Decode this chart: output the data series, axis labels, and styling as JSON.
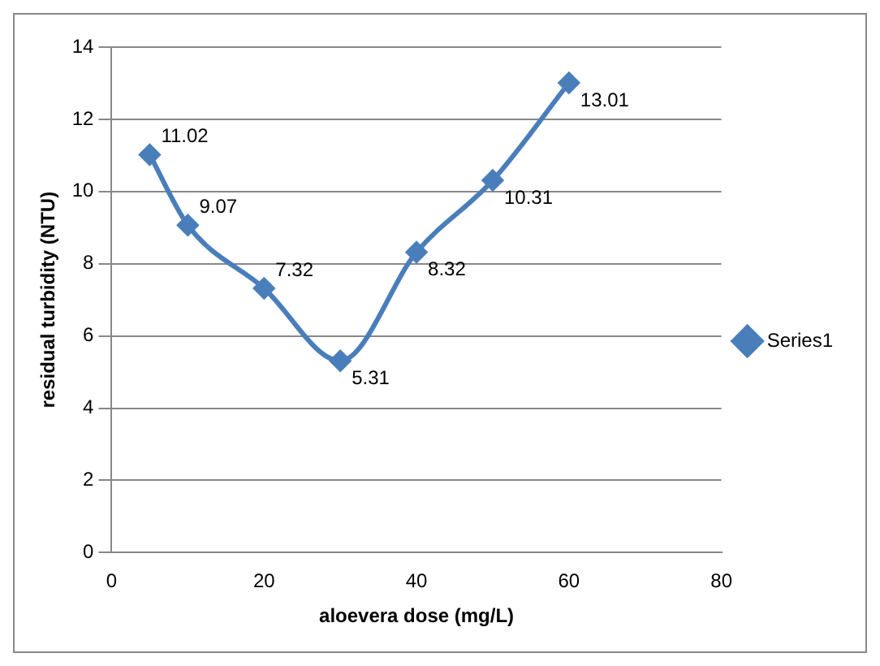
{
  "chart_data": {
    "type": "line",
    "xlabel": "aloevera dose (mg/L)",
    "ylabel": "residual turbidity (NTU)",
    "x": [
      5,
      10,
      20,
      30,
      40,
      50,
      60
    ],
    "series": [
      {
        "name": "Series1",
        "color": "#4a7ebb",
        "values": [
          11.02,
          9.07,
          7.32,
          5.31,
          8.32,
          10.31,
          13.01
        ]
      }
    ],
    "xlim": [
      0,
      80
    ],
    "xticks": [
      0,
      20,
      40,
      60,
      80
    ],
    "ylim": [
      0,
      14
    ],
    "yticks": [
      0,
      2,
      4,
      6,
      8,
      10,
      12,
      14
    ],
    "grid": "y",
    "legend": "right",
    "marker": "diamond",
    "line_style": "solid",
    "data_labels": true
  }
}
